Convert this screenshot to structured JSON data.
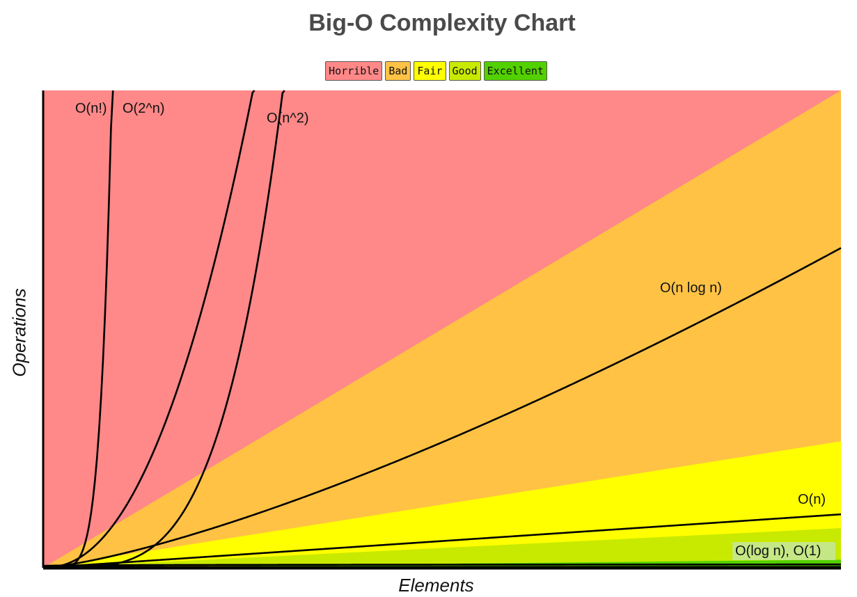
{
  "chart_data": {
    "type": "line",
    "title": "Big-O Complexity Chart",
    "xlabel": "Elements",
    "ylabel": "Operations",
    "legend": [
      {
        "label": "Horrible",
        "color": "#ff8888"
      },
      {
        "label": "Bad",
        "color": "#ffc245"
      },
      {
        "label": "Fair",
        "color": "#ffff00"
      },
      {
        "label": "Good",
        "color": "#c8ea00"
      },
      {
        "label": "Excellent",
        "color": "#53d000"
      }
    ],
    "legend_placement": "top-center",
    "xlim": [
      0,
      100
    ],
    "ylim": [
      0,
      100
    ],
    "grid": false,
    "zones": [
      {
        "name": "Horrible",
        "color": "#ff8888"
      },
      {
        "name": "Bad",
        "color": "#ffc245"
      },
      {
        "name": "Fair",
        "color": "#ffff00"
      },
      {
        "name": "Good",
        "color": "#c8ea00"
      },
      {
        "name": "Excellent",
        "color": "#53d000"
      }
    ],
    "series": [
      {
        "name": "O(n!)"
      },
      {
        "name": "O(2^n)"
      },
      {
        "name": "O(n^2)"
      },
      {
        "name": "O(n log n)"
      },
      {
        "name": "O(n)"
      },
      {
        "name": "O(log n), O(1)"
      }
    ]
  }
}
